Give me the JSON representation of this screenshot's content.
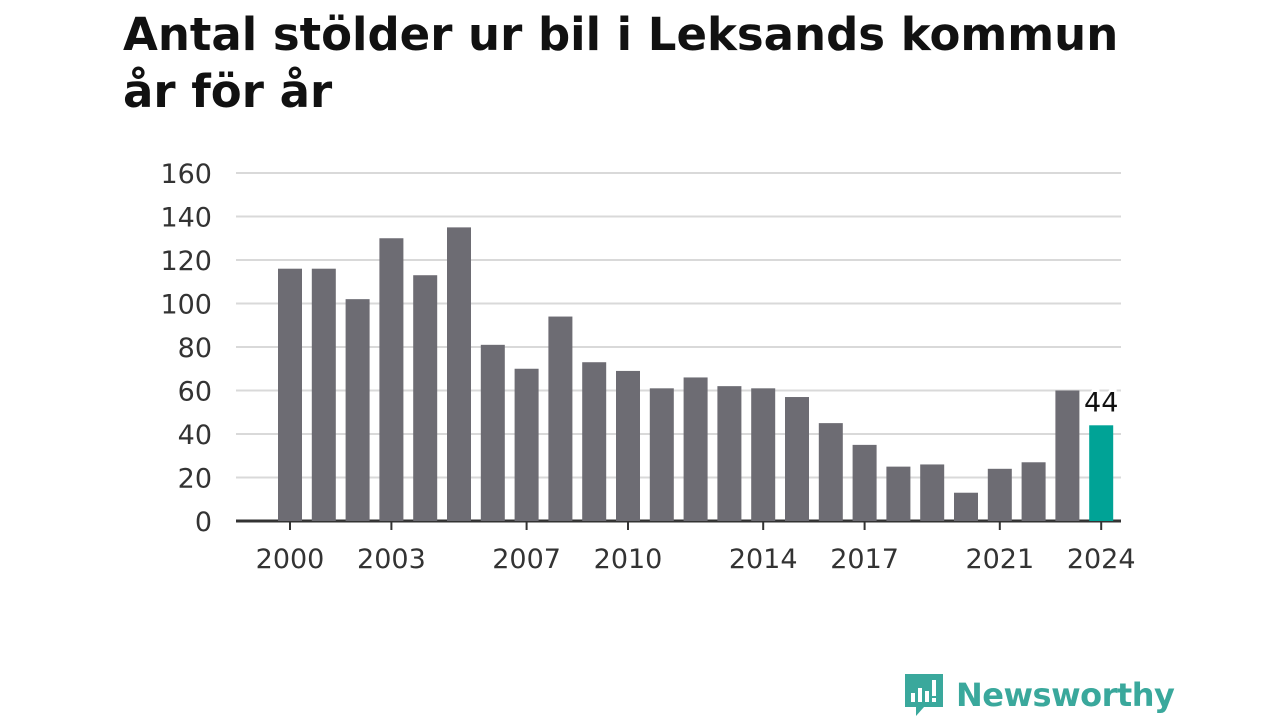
{
  "title": "Antal stölder ur bil i Leksands kommun år för år",
  "brand": {
    "name": "Newsworthy",
    "icon": "newsworthy-logo-icon",
    "color": "#3aa89c"
  },
  "colors": {
    "bar": "#6d6c73",
    "highlight": "#00a396",
    "grid": "#d9d9d9",
    "axis": "#333333"
  },
  "chart_data": {
    "type": "bar",
    "categories": [
      "2000",
      "2001",
      "2002",
      "2003",
      "2004",
      "2005",
      "2006",
      "2007",
      "2008",
      "2009",
      "2010",
      "2011",
      "2012",
      "2013",
      "2014",
      "2015",
      "2016",
      "2017",
      "2018",
      "2019",
      "2020",
      "2021",
      "2022",
      "2023",
      "2024"
    ],
    "values": [
      116,
      116,
      102,
      130,
      113,
      135,
      81,
      70,
      94,
      73,
      69,
      61,
      66,
      62,
      61,
      57,
      45,
      35,
      25,
      26,
      13,
      24,
      27,
      60,
      44
    ],
    "x_tick_labels": [
      "2000",
      "2003",
      "2007",
      "2010",
      "2014",
      "2017",
      "2021",
      "2024"
    ],
    "y_ticks": [
      0,
      20,
      40,
      60,
      80,
      100,
      120,
      140,
      160
    ],
    "ylim": [
      0,
      160
    ],
    "highlight": {
      "category": "2024",
      "label": "44"
    },
    "grid": true,
    "legend": "none",
    "xlabel": "",
    "ylabel": ""
  }
}
